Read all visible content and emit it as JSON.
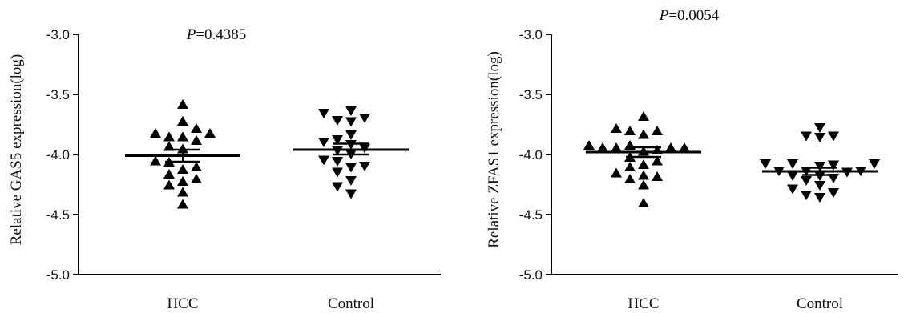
{
  "chart_data": [
    {
      "type": "scatter",
      "subtype": "dot-plot-mean-sem",
      "title": "",
      "ylabel": "Relative GAS5 expression(log)",
      "ylim": [
        -5.0,
        -3.0
      ],
      "yticks": [
        "-3.0",
        "-3.5",
        "-4.0",
        "-4.5",
        "-5.0"
      ],
      "ytick_values": [
        -3.0,
        -3.5,
        -4.0,
        -4.5,
        -5.0
      ],
      "categories": [
        "HCC",
        "Control"
      ],
      "annotation": {
        "p_letter": "P",
        "p_value": "=0.4385"
      },
      "series": [
        {
          "category": "HCC",
          "marker": "triangle-up",
          "mean": -4.01,
          "sem_upper": -3.96,
          "sem_lower": -4.06,
          "values": [
            -3.58,
            -3.72,
            -3.78,
            -3.82,
            -3.82,
            -3.85,
            -3.85,
            -3.88,
            -3.93,
            -3.95,
            -4.05,
            -4.06,
            -4.1,
            -4.12,
            -4.16,
            -4.2,
            -4.22,
            -4.25,
            -4.31,
            -4.41
          ]
        },
        {
          "category": "Control",
          "marker": "triangle-down",
          "mean": -3.96,
          "sem_upper": -3.91,
          "sem_lower": -4.0,
          "values": [
            -3.64,
            -3.66,
            -3.7,
            -3.72,
            -3.73,
            -3.84,
            -3.88,
            -3.9,
            -3.92,
            -3.95,
            -3.97,
            -4.0,
            -4.05,
            -4.06,
            -4.1,
            -4.11,
            -4.15,
            -4.22,
            -4.27,
            -4.33
          ]
        }
      ]
    },
    {
      "type": "scatter",
      "subtype": "dot-plot-mean-sem",
      "title": "",
      "ylabel": "Relative ZFAS1 expression(log)",
      "ylim": [
        -5.0,
        -3.0
      ],
      "yticks": [
        "-3.0",
        "-3.5",
        "-4.0",
        "-4.5",
        "-5.0"
      ],
      "ytick_values": [
        -3.0,
        -3.5,
        -4.0,
        -4.5,
        -5.0
      ],
      "categories": [
        "HCC",
        "Control"
      ],
      "annotation": {
        "p_letter": "P",
        "p_value": "=0.0054"
      },
      "series": [
        {
          "category": "HCC",
          "marker": "triangle-up",
          "mean": -3.98,
          "sem_upper": -3.94,
          "sem_lower": -4.02,
          "values": [
            -3.68,
            -3.78,
            -3.8,
            -3.8,
            -3.83,
            -3.92,
            -3.92,
            -3.94,
            -3.94,
            -3.94,
            -3.94,
            -3.96,
            -3.97,
            -4.02,
            -4.05,
            -4.08,
            -4.1,
            -4.15,
            -4.17,
            -4.18,
            -4.2,
            -4.25,
            -4.4
          ]
        },
        {
          "category": "Control",
          "marker": "triangle-down",
          "mean": -4.14,
          "sem_upper": -4.11,
          "sem_lower": -4.17,
          "values": [
            -3.78,
            -3.85,
            -3.85,
            -3.86,
            -4.08,
            -4.08,
            -4.08,
            -4.09,
            -4.1,
            -4.14,
            -4.14,
            -4.14,
            -4.15,
            -4.18,
            -4.18,
            -4.2,
            -4.22,
            -4.26,
            -4.29,
            -4.32,
            -4.34,
            -4.36
          ]
        }
      ]
    }
  ]
}
